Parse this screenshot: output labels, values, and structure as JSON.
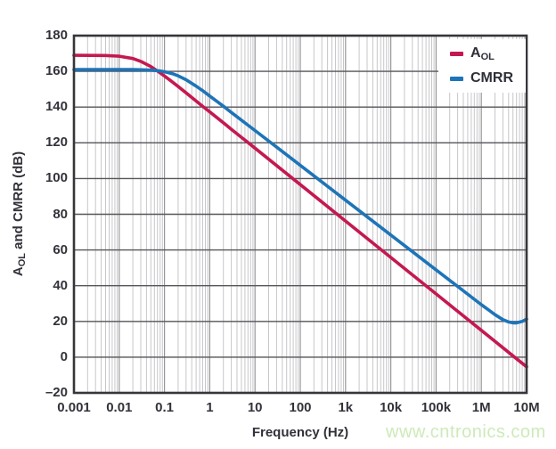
{
  "page": {
    "background": "#ffffff"
  },
  "watermark": {
    "text": "www.cntronics.com",
    "color": "#cdeab9"
  },
  "axis": {
    "x_title": "Frequency (Hz)",
    "y_title_prefix": "A",
    "y_title_sub": "OL",
    "y_title_rest": " and CMRR (dB)"
  },
  "legend": {
    "position": "top-right",
    "items": [
      {
        "prefix": "A",
        "sub": "OL",
        "color": "#c41950"
      },
      {
        "prefix": "CMRR",
        "sub": "",
        "color": "#1e74b8"
      }
    ]
  },
  "chart_data": {
    "type": "line",
    "title": "",
    "xlabel": "Frequency (Hz)",
    "ylabel": "AOL and CMRR (dB)",
    "x_scale": "log",
    "xlim": [
      0.001,
      10000000
    ],
    "ylim": [
      -20,
      180
    ],
    "grid": true,
    "legend_position": "top-right",
    "xtick_values": [
      0.001,
      0.01,
      0.1,
      1,
      10,
      100,
      1000,
      10000,
      100000,
      1000000,
      10000000
    ],
    "xtick_labels": [
      "0.001",
      "0.01",
      "0.1",
      "1",
      "10",
      "100",
      "1k",
      "10k",
      "100k",
      "1M",
      "10M"
    ],
    "ytick_values": [
      180,
      160,
      140,
      120,
      100,
      80,
      60,
      40,
      20,
      0,
      -20
    ],
    "ytick_labels": [
      "180",
      "160",
      "140",
      "120",
      "100",
      "80",
      "60",
      "40",
      "20",
      "0",
      "–20"
    ],
    "colors": {
      "minor_grid": "#c7c7cb",
      "major_grid": "#97979b",
      "h_grid": "#55555a",
      "border": "#36363a"
    },
    "series": [
      {
        "name": "AOL",
        "color": "#c41950",
        "points": [
          [
            0.001,
            169
          ],
          [
            0.005,
            168.9
          ],
          [
            0.01,
            168.5
          ],
          [
            0.02,
            167.2
          ],
          [
            0.03,
            165.6
          ],
          [
            0.05,
            162.7
          ],
          [
            0.07,
            160.2
          ],
          [
            0.1,
            157.4
          ],
          [
            0.15,
            154.0
          ],
          [
            0.2,
            151.5
          ],
          [
            0.3,
            148.0
          ],
          [
            0.5,
            143.4
          ],
          [
            0.7,
            140.4
          ],
          [
            1,
            137.3
          ],
          [
            2,
            131.2
          ],
          [
            3,
            127.6
          ],
          [
            5,
            123.1
          ],
          [
            7,
            120.2
          ],
          [
            10,
            117.0
          ],
          [
            30,
            107.3
          ],
          [
            100,
            96.6
          ],
          [
            300,
            86.9
          ],
          [
            1000,
            76.2
          ],
          [
            3000,
            66.5
          ],
          [
            10000,
            55.8
          ],
          [
            30000,
            46.1
          ],
          [
            100000,
            35.4
          ],
          [
            300000,
            25.7
          ],
          [
            1000000,
            15.0
          ],
          [
            3000000,
            5.3
          ],
          [
            6000000,
            -0.9
          ],
          [
            10000000,
            -5.4
          ]
        ]
      },
      {
        "name": "CMRR",
        "color": "#1e74b8",
        "points": [
          [
            0.001,
            161
          ],
          [
            0.01,
            161
          ],
          [
            0.02,
            161
          ],
          [
            0.03,
            160.9
          ],
          [
            0.05,
            160.7
          ],
          [
            0.07,
            160.4
          ],
          [
            0.1,
            159.8
          ],
          [
            0.15,
            158.7
          ],
          [
            0.2,
            157.5
          ],
          [
            0.3,
            155.3
          ],
          [
            0.5,
            151.7
          ],
          [
            0.7,
            149.2
          ],
          [
            1,
            146.2
          ],
          [
            2,
            140.5
          ],
          [
            3,
            137.0
          ],
          [
            5,
            132.7
          ],
          [
            7,
            129.9
          ],
          [
            10,
            126.9
          ],
          [
            30,
            117.6
          ],
          [
            100,
            107.4
          ],
          [
            300,
            98.1
          ],
          [
            1000,
            87.9
          ],
          [
            3000,
            78.6
          ],
          [
            10000,
            68.4
          ],
          [
            30000,
            59.1
          ],
          [
            100000,
            48.9
          ],
          [
            300000,
            39.6
          ],
          [
            1000000,
            29.4
          ],
          [
            1500000,
            26.2
          ],
          [
            2000000,
            23.8
          ],
          [
            3000000,
            21.0
          ],
          [
            4000000,
            19.7
          ],
          [
            5000000,
            19.2
          ],
          [
            6000000,
            19.2
          ],
          [
            8000000,
            20.0
          ],
          [
            10000000,
            21.3
          ]
        ]
      }
    ]
  }
}
